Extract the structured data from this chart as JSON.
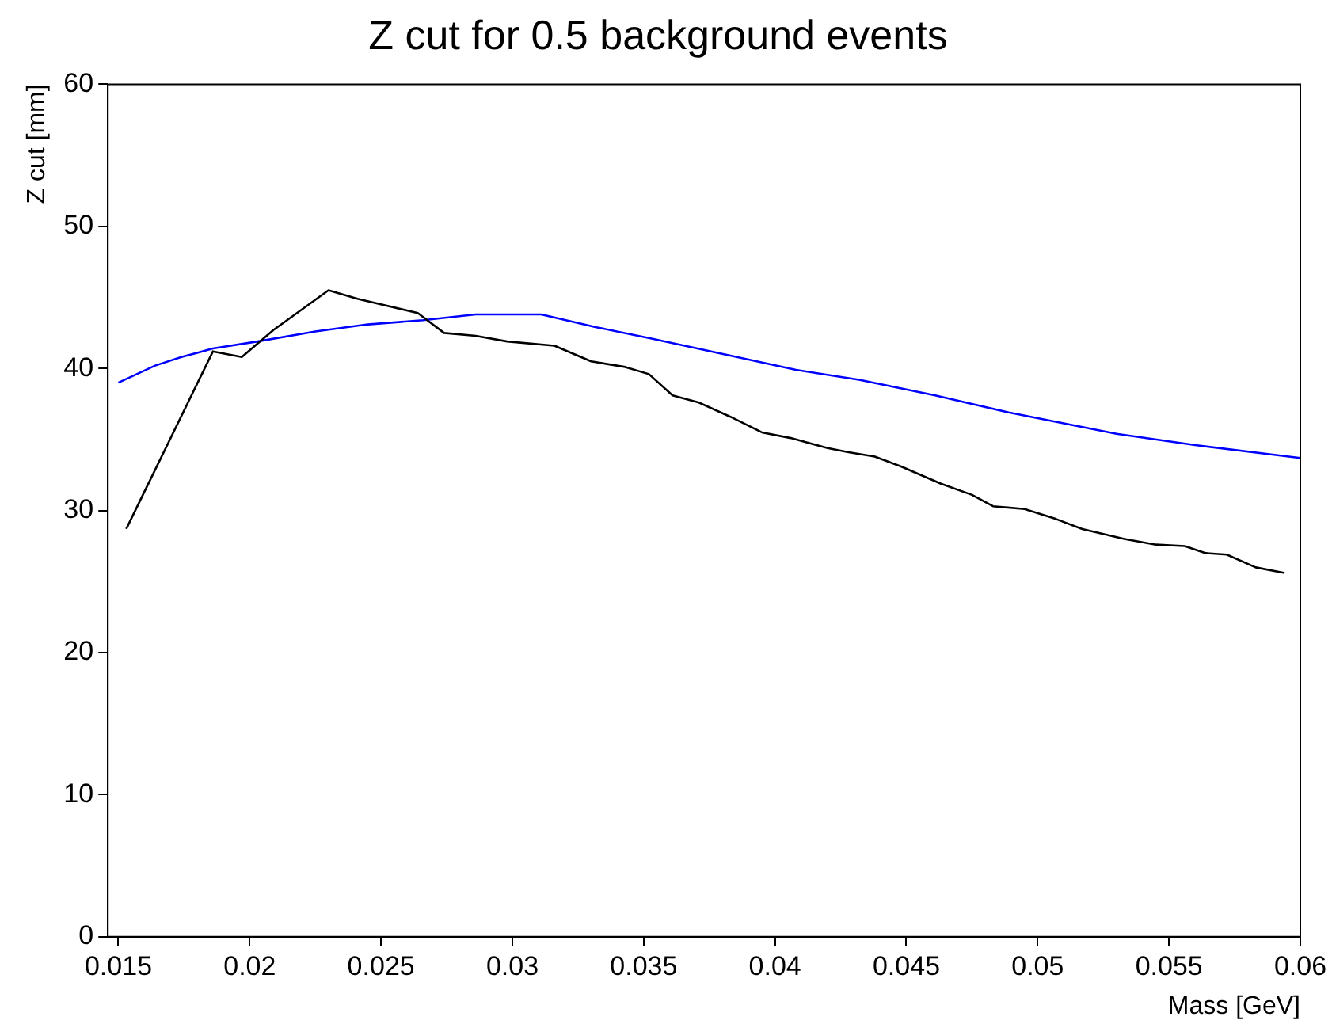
{
  "chart_data": {
    "type": "line",
    "title": "Z cut for 0.5 background events",
    "xlabel": "Mass [GeV]",
    "ylabel": "Z cut [mm]",
    "xlim": [
      0.0146,
      0.06
    ],
    "xticks": [
      0.015,
      0.02,
      0.025,
      0.03,
      0.035,
      0.04,
      0.045,
      0.05,
      0.055,
      0.06
    ],
    "ylim": [
      0,
      60
    ],
    "yticks": [
      0,
      10,
      20,
      30,
      40,
      50,
      60
    ],
    "grid": false,
    "legend": false,
    "marker": "none",
    "line_style": "solid",
    "series": [
      {
        "color": "#000000",
        "x": [
          0.0153,
          0.0186,
          0.0197,
          0.0209,
          0.023,
          0.0241,
          0.0264,
          0.0274,
          0.0286,
          0.0298,
          0.0316,
          0.033,
          0.0343,
          0.0352,
          0.0361,
          0.0371,
          0.0383,
          0.0395,
          0.0406,
          0.042,
          0.0428,
          0.0438,
          0.0448,
          0.0463,
          0.0475,
          0.0483,
          0.0495,
          0.0507,
          0.0517,
          0.0533,
          0.0545,
          0.0556,
          0.0564,
          0.0572,
          0.0583,
          0.0594
        ],
        "values": [
          28.7,
          41.2,
          40.8,
          42.7,
          45.5,
          44.9,
          43.9,
          42.5,
          42.3,
          41.9,
          41.6,
          40.5,
          40.1,
          39.6,
          38.1,
          37.6,
          36.6,
          35.5,
          35.1,
          34.4,
          34.1,
          33.8,
          33.1,
          31.9,
          31.1,
          30.3,
          30.1,
          29.4,
          28.7,
          28.0,
          27.6,
          27.5,
          27.0,
          26.9,
          26.0,
          25.6
        ]
      },
      {
        "color": "#0000ff",
        "x": [
          0.015,
          0.0164,
          0.0174,
          0.0186,
          0.0203,
          0.0225,
          0.0245,
          0.0266,
          0.0286,
          0.0311,
          0.0332,
          0.0353,
          0.0383,
          0.0408,
          0.0432,
          0.0461,
          0.0489,
          0.053,
          0.056,
          0.06
        ],
        "values": [
          39.0,
          40.2,
          40.8,
          41.4,
          41.9,
          42.6,
          43.1,
          43.4,
          43.8,
          43.8,
          42.9,
          42.1,
          40.9,
          39.9,
          39.2,
          38.1,
          36.9,
          35.4,
          34.6,
          33.7
        ]
      }
    ]
  }
}
